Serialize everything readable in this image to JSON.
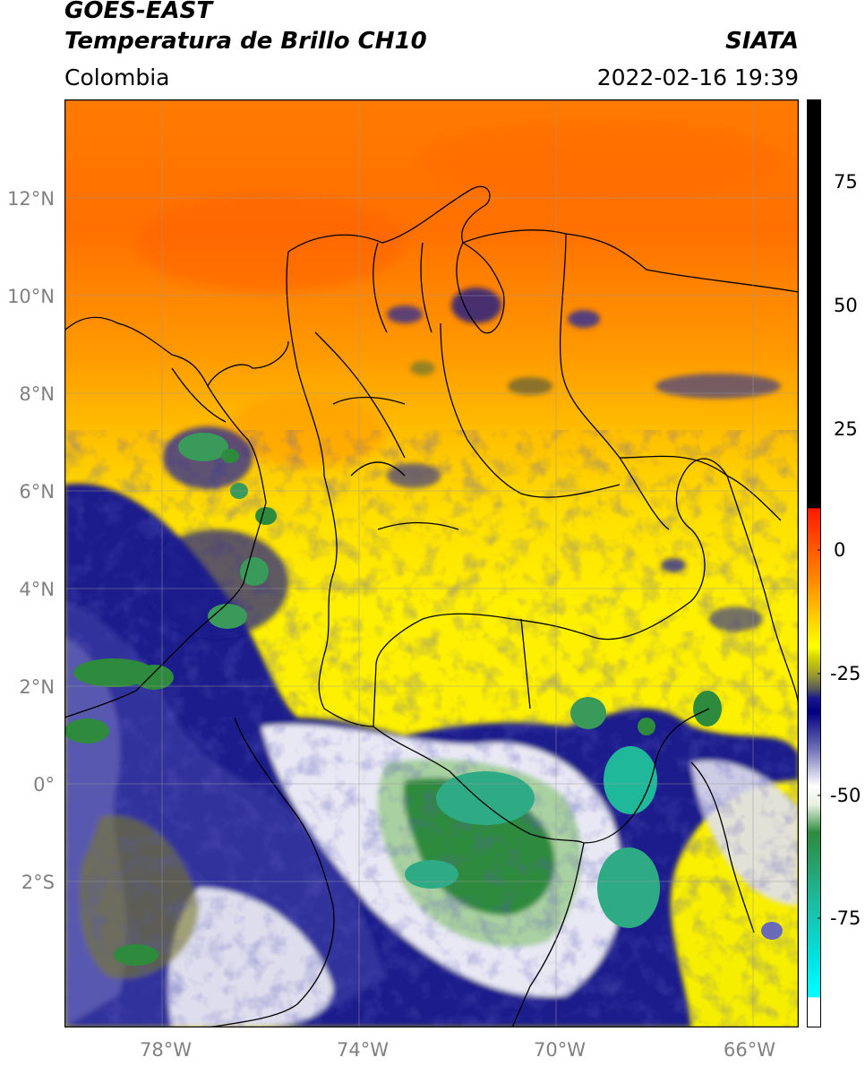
{
  "header": {
    "satellite": "GOES-EAST",
    "product": "Temperatura de Brillo CH10",
    "region": "Colombia",
    "source": "SIATA",
    "datetime": "2022-02-16 19:39"
  },
  "map": {
    "lat_labels": [
      "12°N",
      "10°N",
      "8°N",
      "6°N",
      "4°N",
      "2°N",
      "0°",
      "2°S"
    ],
    "lon_labels": [
      "78°W",
      "74°W",
      "70°W",
      "66°W"
    ],
    "extent": {
      "lon_min": -80,
      "lon_max": -65,
      "lat_min": -5,
      "lat_max": 14
    },
    "gridlines": true
  },
  "colorbar": {
    "tick_labels": [
      "75",
      "50",
      "25",
      "0",
      "-25",
      "-50",
      "-75"
    ],
    "range": [
      -95,
      90
    ],
    "colors": {
      "black": "#000000",
      "red": "#ff1a00",
      "orange": "#ff8c00",
      "yellow": "#ffff00",
      "olive": "#7a7a2a",
      "navy": "#1a1a8c",
      "white": "#ffffff",
      "green": "#2e8b3e",
      "teal": "#1fb89a",
      "cyan": "#00e5e5"
    }
  }
}
